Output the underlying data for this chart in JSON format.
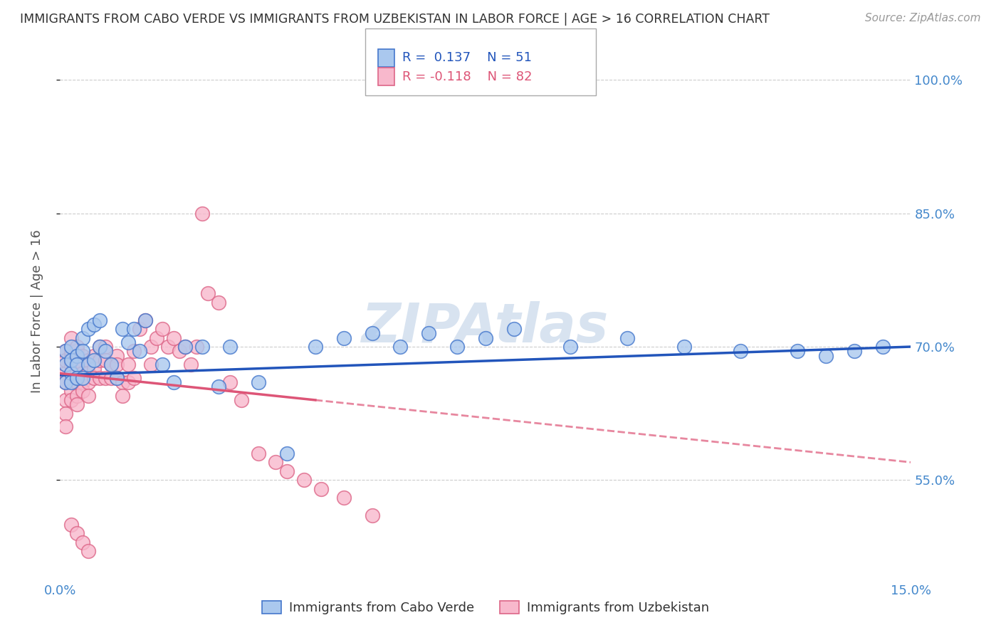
{
  "title": "IMMIGRANTS FROM CABO VERDE VS IMMIGRANTS FROM UZBEKISTAN IN LABOR FORCE | AGE > 16 CORRELATION CHART",
  "source": "Source: ZipAtlas.com",
  "ylabel": "In Labor Force | Age > 16",
  "xlim": [
    0.0,
    0.15
  ],
  "ylim": [
    0.44,
    1.04
  ],
  "yticks": [
    0.55,
    0.7,
    0.85,
    1.0
  ],
  "ytick_labels": [
    "55.0%",
    "70.0%",
    "85.0%",
    "100.0%"
  ],
  "xticks": [
    0.0,
    0.03,
    0.06,
    0.09,
    0.12,
    0.15
  ],
  "xtick_labels": [
    "0.0%",
    "",
    "",
    "",
    "",
    "15.0%"
  ],
  "cabo_verde_R": 0.137,
  "cabo_verde_N": 51,
  "uzbekistan_R": -0.118,
  "uzbekistan_N": 82,
  "cabo_verde_face_color": "#aac8ee",
  "cabo_verde_edge_color": "#4477cc",
  "uzbekistan_face_color": "#f8b8cc",
  "uzbekistan_edge_color": "#dd6688",
  "cabo_verde_trend_color": "#2255bb",
  "uzbekistan_trend_color": "#dd5577",
  "background_color": "#ffffff",
  "grid_color": "#cccccc",
  "axis_color": "#4488cc",
  "cabo_verde_x": [
    0.001,
    0.001,
    0.001,
    0.002,
    0.002,
    0.002,
    0.002,
    0.003,
    0.003,
    0.003,
    0.004,
    0.004,
    0.004,
    0.005,
    0.005,
    0.006,
    0.006,
    0.007,
    0.007,
    0.008,
    0.009,
    0.01,
    0.011,
    0.012,
    0.013,
    0.014,
    0.015,
    0.018,
    0.02,
    0.022,
    0.025,
    0.028,
    0.03,
    0.035,
    0.04,
    0.045,
    0.05,
    0.055,
    0.06,
    0.065,
    0.07,
    0.075,
    0.08,
    0.09,
    0.1,
    0.11,
    0.12,
    0.13,
    0.135,
    0.14,
    0.145
  ],
  "cabo_verde_y": [
    0.68,
    0.695,
    0.66,
    0.7,
    0.67,
    0.685,
    0.66,
    0.69,
    0.68,
    0.665,
    0.71,
    0.695,
    0.665,
    0.72,
    0.68,
    0.725,
    0.685,
    0.73,
    0.7,
    0.695,
    0.68,
    0.665,
    0.72,
    0.705,
    0.72,
    0.695,
    0.73,
    0.68,
    0.66,
    0.7,
    0.7,
    0.655,
    0.7,
    0.66,
    0.58,
    0.7,
    0.71,
    0.715,
    0.7,
    0.715,
    0.7,
    0.71,
    0.72,
    0.7,
    0.71,
    0.7,
    0.695,
    0.695,
    0.69,
    0.695,
    0.7
  ],
  "uzbekistan_x": [
    0.001,
    0.001,
    0.001,
    0.001,
    0.001,
    0.001,
    0.001,
    0.001,
    0.002,
    0.002,
    0.002,
    0.002,
    0.002,
    0.002,
    0.002,
    0.002,
    0.002,
    0.003,
    0.003,
    0.003,
    0.003,
    0.003,
    0.003,
    0.003,
    0.003,
    0.004,
    0.004,
    0.004,
    0.004,
    0.004,
    0.005,
    0.005,
    0.005,
    0.005,
    0.006,
    0.006,
    0.006,
    0.007,
    0.007,
    0.007,
    0.008,
    0.008,
    0.008,
    0.009,
    0.009,
    0.01,
    0.01,
    0.01,
    0.011,
    0.011,
    0.012,
    0.012,
    0.013,
    0.013,
    0.014,
    0.015,
    0.016,
    0.016,
    0.017,
    0.018,
    0.019,
    0.02,
    0.021,
    0.022,
    0.023,
    0.024,
    0.025,
    0.026,
    0.028,
    0.03,
    0.032,
    0.035,
    0.038,
    0.04,
    0.043,
    0.046,
    0.05,
    0.055,
    0.002,
    0.003,
    0.004,
    0.005
  ],
  "uzbekistan_y": [
    0.695,
    0.68,
    0.67,
    0.66,
    0.685,
    0.64,
    0.625,
    0.61,
    0.69,
    0.68,
    0.67,
    0.66,
    0.65,
    0.64,
    0.695,
    0.71,
    0.67,
    0.695,
    0.68,
    0.67,
    0.66,
    0.645,
    0.635,
    0.7,
    0.68,
    0.69,
    0.68,
    0.67,
    0.66,
    0.65,
    0.685,
    0.67,
    0.66,
    0.645,
    0.69,
    0.675,
    0.665,
    0.7,
    0.685,
    0.665,
    0.7,
    0.685,
    0.665,
    0.68,
    0.665,
    0.69,
    0.68,
    0.665,
    0.66,
    0.645,
    0.68,
    0.66,
    0.695,
    0.665,
    0.72,
    0.73,
    0.7,
    0.68,
    0.71,
    0.72,
    0.7,
    0.71,
    0.695,
    0.7,
    0.68,
    0.7,
    0.85,
    0.76,
    0.75,
    0.66,
    0.64,
    0.58,
    0.57,
    0.56,
    0.55,
    0.54,
    0.53,
    0.51,
    0.5,
    0.49,
    0.48,
    0.47
  ]
}
